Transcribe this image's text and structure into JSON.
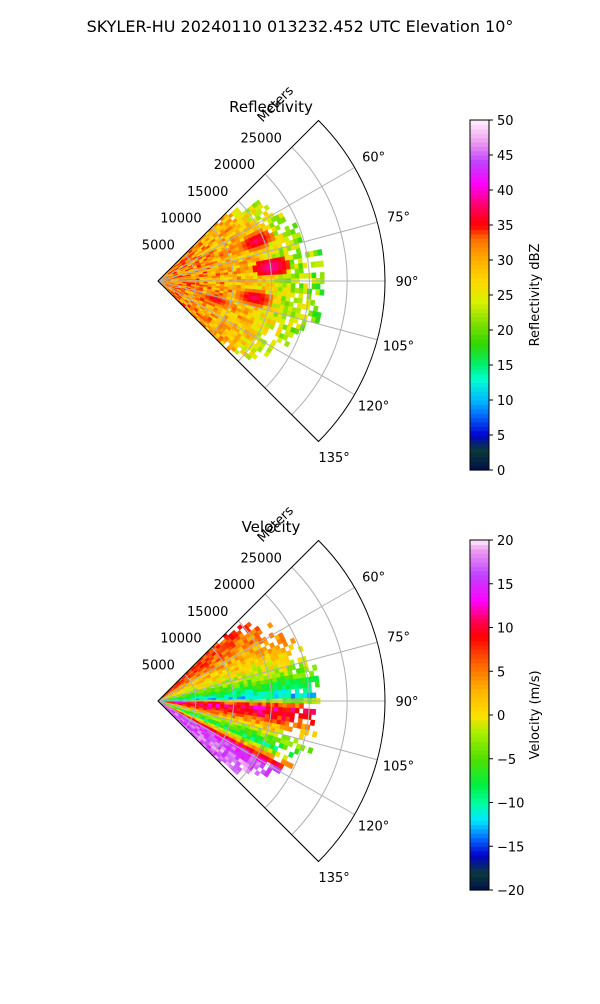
{
  "figure": {
    "title": "SKYLER-HU  20240110  013232.452 UTC Elevation 10°"
  },
  "chart_data": [
    {
      "type": "heatmap",
      "projection": "polar-sector",
      "title": "Reflectivity",
      "range_label": "Meters",
      "range_ticks": [
        "5000",
        "10000",
        "15000",
        "20000",
        "25000"
      ],
      "range_tick_values": [
        5000,
        10000,
        15000,
        20000,
        25000
      ],
      "range_max": 30000,
      "azimuth_ticks": [
        "60°",
        "75°",
        "90°",
        "105°",
        "120°",
        "135°"
      ],
      "azimuth_tick_values": [
        60,
        75,
        90,
        105,
        120,
        135
      ],
      "azimuth_range": [
        45,
        135
      ],
      "grid": true,
      "colorbar": {
        "label": "Reflectivity dBZ",
        "vmin": 0,
        "vmax": 50,
        "ticks": [
          "0",
          "5",
          "10",
          "15",
          "20",
          "25",
          "30",
          "35",
          "40",
          "45",
          "50"
        ],
        "stops": [
          [
            0,
            "#00104a"
          ],
          [
            3,
            "#0a3a3a"
          ],
          [
            5,
            "#0000d0"
          ],
          [
            8,
            "#0070ff"
          ],
          [
            10,
            "#00b8ff"
          ],
          [
            13,
            "#00ffd0"
          ],
          [
            15,
            "#00f070"
          ],
          [
            18,
            "#30d800"
          ],
          [
            21,
            "#80e000"
          ],
          [
            24,
            "#d8f000"
          ],
          [
            27,
            "#ffd800"
          ],
          [
            30,
            "#ffb000"
          ],
          [
            33,
            "#ff7000"
          ],
          [
            35,
            "#ff0000"
          ],
          [
            38,
            "#ff0070"
          ],
          [
            41,
            "#ff00ff"
          ],
          [
            44,
            "#c040ff"
          ],
          [
            47,
            "#f0a0f0"
          ],
          [
            50,
            "#fff0ff"
          ]
        ]
      },
      "field_profile": [
        [
          0,
          30
        ],
        [
          3000,
          32
        ],
        [
          6000,
          31
        ],
        [
          9000,
          30
        ],
        [
          12000,
          29
        ],
        [
          15000,
          26
        ],
        [
          18000,
          23
        ],
        [
          20000,
          22
        ],
        [
          21500,
          20
        ]
      ],
      "echo_extent_m": 22000,
      "cores": [
        {
          "az": 68,
          "r": 14000,
          "value": 38
        },
        {
          "az": 83,
          "r": 15000,
          "value": 40
        },
        {
          "az": 100,
          "r": 13000,
          "value": 38
        },
        {
          "az": 108,
          "r": 8000,
          "value": 37
        }
      ]
    },
    {
      "type": "heatmap",
      "projection": "polar-sector",
      "title": "Velocity",
      "range_label": "Meters",
      "range_ticks": [
        "5000",
        "10000",
        "15000",
        "20000",
        "25000"
      ],
      "range_tick_values": [
        5000,
        10000,
        15000,
        20000,
        25000
      ],
      "range_max": 30000,
      "azimuth_ticks": [
        "60°",
        "75°",
        "90°",
        "105°",
        "120°",
        "135°"
      ],
      "azimuth_tick_values": [
        60,
        75,
        90,
        105,
        120,
        135
      ],
      "azimuth_range": [
        45,
        135
      ],
      "grid": true,
      "colorbar": {
        "label": "Velocity (m/s)",
        "vmin": -20,
        "vmax": 20,
        "ticks": [
          "−20",
          "−15",
          "−10",
          "−5",
          "0",
          "5",
          "10",
          "15",
          "20"
        ],
        "stops": [
          [
            -20,
            "#00104a"
          ],
          [
            -18,
            "#0a3a3a"
          ],
          [
            -16,
            "#0000d0"
          ],
          [
            -14,
            "#0070ff"
          ],
          [
            -12,
            "#00e8ff"
          ],
          [
            -10,
            "#00ffa0"
          ],
          [
            -8,
            "#00f040"
          ],
          [
            -5,
            "#50e000"
          ],
          [
            -2,
            "#a8f000"
          ],
          [
            0,
            "#ffe000"
          ],
          [
            3,
            "#ffb000"
          ],
          [
            6,
            "#ff6000"
          ],
          [
            9,
            "#ff0000"
          ],
          [
            11,
            "#ff0060"
          ],
          [
            13,
            "#ff00ff"
          ],
          [
            16,
            "#c040ff"
          ],
          [
            19,
            "#f0a0f0"
          ],
          [
            20,
            "#fff0ff"
          ]
        ]
      },
      "field_profile": [
        [
          50,
          8
        ],
        [
          58,
          4
        ],
        [
          66,
          1
        ],
        [
          74,
          -2
        ],
        [
          82,
          -7
        ],
        [
          88,
          -11
        ],
        [
          93,
          12
        ],
        [
          98,
          10
        ],
        [
          104,
          2
        ],
        [
          112,
          -8
        ],
        [
          120,
          14
        ],
        [
          126,
          16
        ]
      ],
      "echo_extent_m": 22000
    }
  ]
}
